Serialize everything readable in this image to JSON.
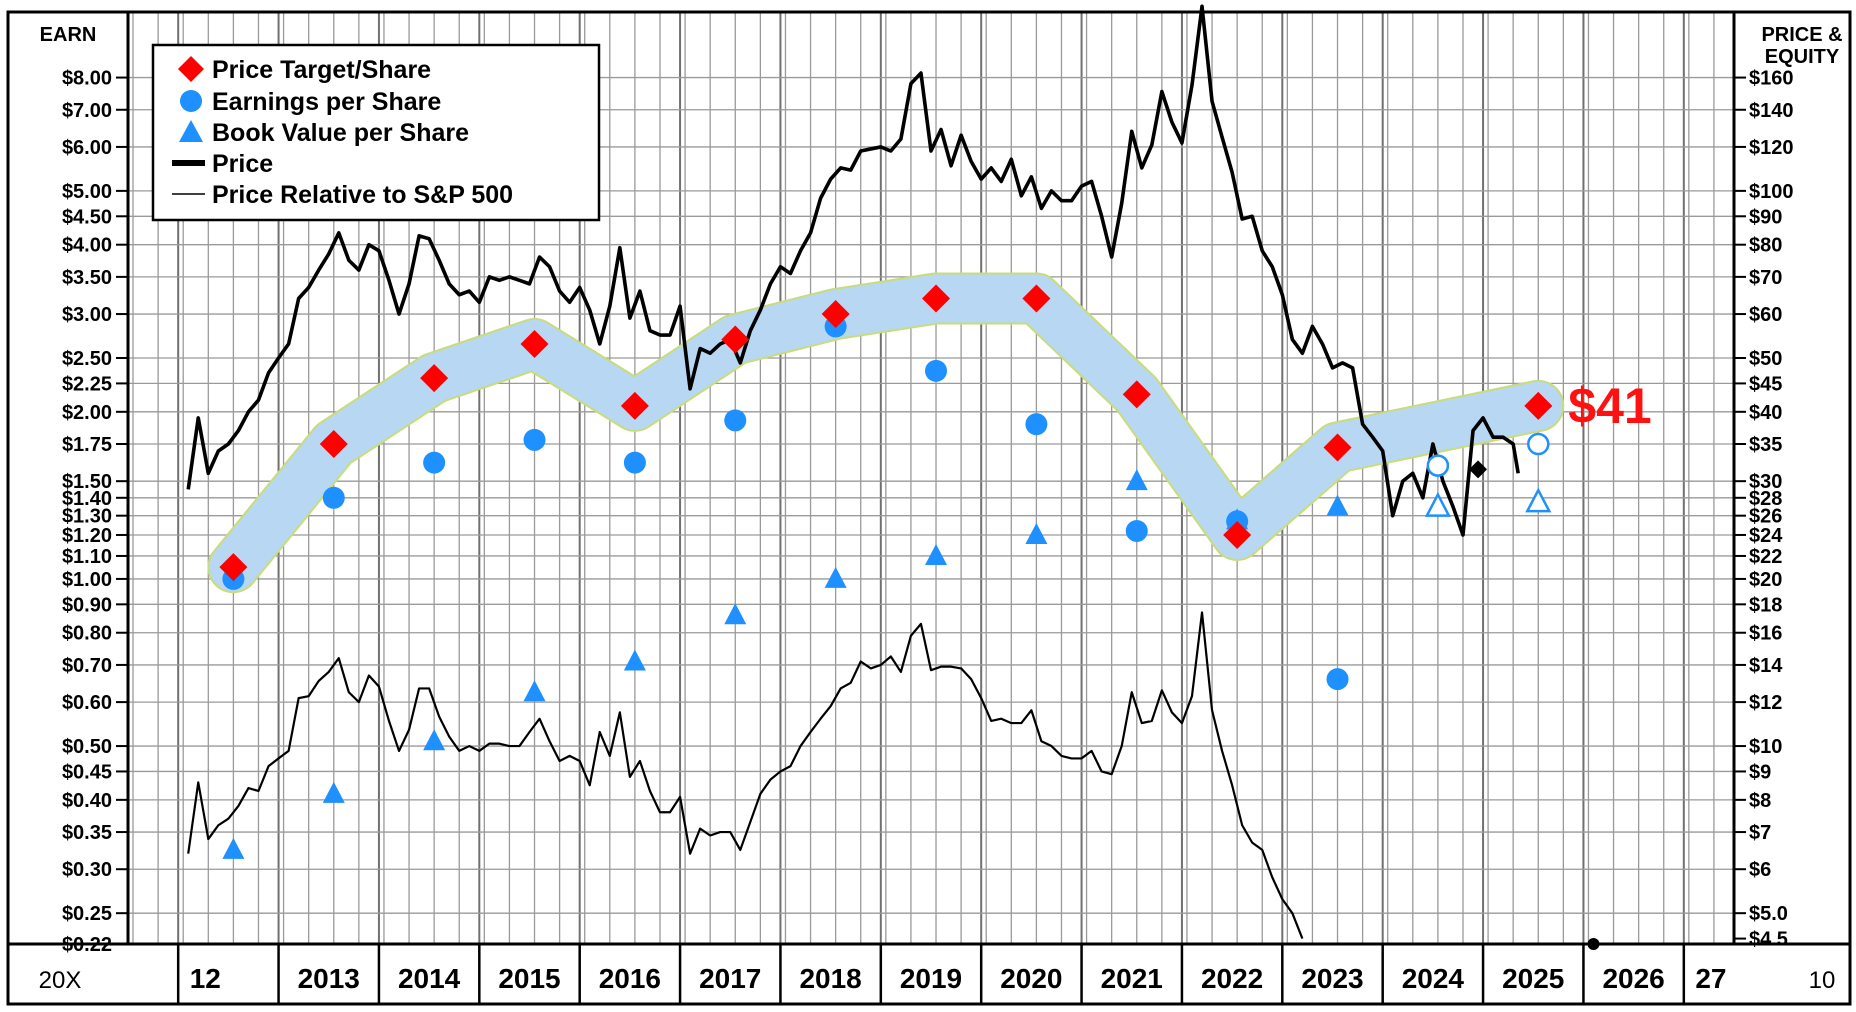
{
  "chart_data": {
    "type": "line",
    "scale": "log",
    "left_axis_label": "EARN",
    "right_axis_label_line1": "PRICE &",
    "right_axis_label_line2": "EQUITY",
    "corner_left": "20X",
    "corner_right": "10",
    "year_labels": [
      "12",
      "2013",
      "2014",
      "2015",
      "2016",
      "2017",
      "2018",
      "2019",
      "2020",
      "2021",
      "2022",
      "2023",
      "2024",
      "2025",
      "2026",
      "27"
    ],
    "earn_ticks": [
      {
        "v": 8.0,
        "t": "$8.00"
      },
      {
        "v": 7.0,
        "t": "$7.00"
      },
      {
        "v": 6.0,
        "t": "$6.00"
      },
      {
        "v": 5.0,
        "t": "$5.00"
      },
      {
        "v": 4.5,
        "t": "$4.50"
      },
      {
        "v": 4.0,
        "t": "$4.00"
      },
      {
        "v": 3.5,
        "t": "$3.50"
      },
      {
        "v": 3.0,
        "t": "$3.00"
      },
      {
        "v": 2.5,
        "t": "$2.50"
      },
      {
        "v": 2.25,
        "t": "$2.25"
      },
      {
        "v": 2.0,
        "t": "$2.00"
      },
      {
        "v": 1.75,
        "t": "$1.75"
      },
      {
        "v": 1.5,
        "t": "$1.50"
      },
      {
        "v": 1.4,
        "t": "$1.40"
      },
      {
        "v": 1.3,
        "t": "$1.30"
      },
      {
        "v": 1.2,
        "t": "$1.20"
      },
      {
        "v": 1.1,
        "t": "$1.10"
      },
      {
        "v": 1.0,
        "t": "$1.00"
      },
      {
        "v": 0.9,
        "t": "$0.90"
      },
      {
        "v": 0.8,
        "t": "$0.80"
      },
      {
        "v": 0.7,
        "t": "$0.70"
      },
      {
        "v": 0.6,
        "t": "$0.60"
      },
      {
        "v": 0.5,
        "t": "$0.50"
      },
      {
        "v": 0.45,
        "t": "$0.45"
      },
      {
        "v": 0.4,
        "t": "$0.40"
      },
      {
        "v": 0.35,
        "t": "$0.35"
      },
      {
        "v": 0.3,
        "t": "$0.30"
      },
      {
        "v": 0.25,
        "t": "$0.25"
      },
      {
        "v": 0.22,
        "t": "$0.22"
      }
    ],
    "price_ticks": [
      {
        "v": 160,
        "t": "$160"
      },
      {
        "v": 140,
        "t": "$140"
      },
      {
        "v": 120,
        "t": "$120"
      },
      {
        "v": 100,
        "t": "$100"
      },
      {
        "v": 90,
        "t": "$90"
      },
      {
        "v": 80,
        "t": "$80"
      },
      {
        "v": 70,
        "t": "$70"
      },
      {
        "v": 60,
        "t": "$60"
      },
      {
        "v": 50,
        "t": "$50"
      },
      {
        "v": 45,
        "t": "$45"
      },
      {
        "v": 40,
        "t": "$40"
      },
      {
        "v": 35,
        "t": "$35"
      },
      {
        "v": 30,
        "t": "$30"
      },
      {
        "v": 28,
        "t": "$28"
      },
      {
        "v": 26,
        "t": "$26"
      },
      {
        "v": 24,
        "t": "$24"
      },
      {
        "v": 22,
        "t": "$22"
      },
      {
        "v": 20,
        "t": "$20"
      },
      {
        "v": 18,
        "t": "$18"
      },
      {
        "v": 16,
        "t": "$16"
      },
      {
        "v": 14,
        "t": "$14"
      },
      {
        "v": 12,
        "t": "$12"
      },
      {
        "v": 10,
        "t": "$10"
      },
      {
        "v": 9,
        "t": "$9"
      },
      {
        "v": 8,
        "t": "$8"
      },
      {
        "v": 7,
        "t": "$7"
      },
      {
        "v": 6,
        "t": "$6"
      },
      {
        "v": 5,
        "t": "$5.0"
      },
      {
        "v": 4.5,
        "t": "$4.5"
      }
    ],
    "legend": [
      {
        "name": "Price Target/Share",
        "marker": "diamond",
        "color": "#ff0000"
      },
      {
        "name": "Earnings per Share",
        "marker": "circle",
        "color": "#1e90ff"
      },
      {
        "name": "Book Value per Share",
        "marker": "triangle",
        "color": "#1e90ff"
      },
      {
        "name": "Price",
        "marker": "thick-line",
        "color": "#000000"
      },
      {
        "name": "Price Relative to S&P 500",
        "marker": "thin-line",
        "color": "#000000"
      }
    ],
    "price_target_label": "$41",
    "price_target": [
      {
        "x": 2012.5,
        "v": 21
      },
      {
        "x": 2013.5,
        "v": 35
      },
      {
        "x": 2014.5,
        "v": 46
      },
      {
        "x": 2015.5,
        "v": 53
      },
      {
        "x": 2016.5,
        "v": 41
      },
      {
        "x": 2017.5,
        "v": 54
      },
      {
        "x": 2018.5,
        "v": 60
      },
      {
        "x": 2019.5,
        "v": 64
      },
      {
        "x": 2020.5,
        "v": 64
      },
      {
        "x": 2021.5,
        "v": 43
      },
      {
        "x": 2022.5,
        "v": 24
      },
      {
        "x": 2023.5,
        "v": 34.5
      },
      {
        "x": 2025.5,
        "v": 41
      }
    ],
    "eps": [
      {
        "x": 2012.5,
        "v": 1.0,
        "est": false
      },
      {
        "x": 2013.5,
        "v": 1.4,
        "est": false
      },
      {
        "x": 2014.5,
        "v": 1.62,
        "est": false
      },
      {
        "x": 2015.5,
        "v": 1.78,
        "est": false
      },
      {
        "x": 2016.5,
        "v": 1.62,
        "est": false
      },
      {
        "x": 2017.5,
        "v": 1.93,
        "est": false
      },
      {
        "x": 2018.5,
        "v": 2.85,
        "est": false
      },
      {
        "x": 2019.5,
        "v": 2.37,
        "est": false
      },
      {
        "x": 2020.5,
        "v": 1.9,
        "est": false
      },
      {
        "x": 2021.5,
        "v": 1.22,
        "est": false
      },
      {
        "x": 2022.5,
        "v": 1.27,
        "est": false
      },
      {
        "x": 2023.5,
        "v": 0.66,
        "est": false
      },
      {
        "x": 2024.5,
        "v": 1.6,
        "est": true
      },
      {
        "x": 2025.5,
        "v": 1.75,
        "est": true
      }
    ],
    "book_value": [
      {
        "x": 2012.5,
        "v": 6.5,
        "est": false
      },
      {
        "x": 2013.5,
        "v": 8.2,
        "est": false
      },
      {
        "x": 2014.5,
        "v": 10.2,
        "est": false
      },
      {
        "x": 2015.5,
        "v": 12.5,
        "est": false
      },
      {
        "x": 2016.5,
        "v": 14.2,
        "est": false
      },
      {
        "x": 2017.5,
        "v": 17.2,
        "est": false
      },
      {
        "x": 2018.5,
        "v": 20.0,
        "est": false
      },
      {
        "x": 2019.5,
        "v": 22.0,
        "est": false
      },
      {
        "x": 2020.5,
        "v": 24.0,
        "est": false
      },
      {
        "x": 2021.5,
        "v": 30.0,
        "est": false
      },
      {
        "x": 2022.5,
        "v": 25.5,
        "est": false
      },
      {
        "x": 2023.5,
        "v": 27.0,
        "est": false
      },
      {
        "x": 2024.5,
        "v": 27.0,
        "est": true
      },
      {
        "x": 2025.5,
        "v": 27.5,
        "est": true
      }
    ],
    "price": [
      [
        2012.05,
        29
      ],
      [
        2012.15,
        39
      ],
      [
        2012.25,
        31
      ],
      [
        2012.35,
        34
      ],
      [
        2012.45,
        35
      ],
      [
        2012.55,
        37
      ],
      [
        2012.65,
        40
      ],
      [
        2012.75,
        42
      ],
      [
        2012.85,
        47
      ],
      [
        2012.95,
        50
      ],
      [
        2013.05,
        53
      ],
      [
        2013.15,
        64
      ],
      [
        2013.25,
        67
      ],
      [
        2013.35,
        72
      ],
      [
        2013.45,
        77
      ],
      [
        2013.55,
        84
      ],
      [
        2013.65,
        75
      ],
      [
        2013.75,
        72
      ],
      [
        2013.85,
        80
      ],
      [
        2013.95,
        78
      ],
      [
        2014.05,
        69
      ],
      [
        2014.15,
        60
      ],
      [
        2014.25,
        68
      ],
      [
        2014.35,
        83
      ],
      [
        2014.45,
        82
      ],
      [
        2014.55,
        75
      ],
      [
        2014.65,
        68
      ],
      [
        2014.75,
        65
      ],
      [
        2014.85,
        66
      ],
      [
        2014.95,
        63
      ],
      [
        2015.05,
        70
      ],
      [
        2015.15,
        69
      ],
      [
        2015.25,
        70
      ],
      [
        2015.35,
        69
      ],
      [
        2015.45,
        68
      ],
      [
        2015.55,
        76
      ],
      [
        2015.65,
        73
      ],
      [
        2015.75,
        66
      ],
      [
        2015.85,
        63
      ],
      [
        2015.95,
        67
      ],
      [
        2016.05,
        61
      ],
      [
        2016.15,
        53
      ],
      [
        2016.25,
        62
      ],
      [
        2016.35,
        79
      ],
      [
        2016.45,
        59
      ],
      [
        2016.55,
        66
      ],
      [
        2016.65,
        56
      ],
      [
        2016.75,
        55
      ],
      [
        2016.85,
        55
      ],
      [
        2016.95,
        62
      ],
      [
        2017.05,
        44
      ],
      [
        2017.15,
        52
      ],
      [
        2017.25,
        51
      ],
      [
        2017.35,
        53
      ],
      [
        2017.45,
        54
      ],
      [
        2017.55,
        49
      ],
      [
        2017.65,
        56
      ],
      [
        2017.75,
        61
      ],
      [
        2017.85,
        68
      ],
      [
        2017.95,
        73
      ],
      [
        2018.05,
        71
      ],
      [
        2018.15,
        78
      ],
      [
        2018.25,
        84
      ],
      [
        2018.35,
        97
      ],
      [
        2018.45,
        105
      ],
      [
        2018.55,
        110
      ],
      [
        2018.65,
        109
      ],
      [
        2018.75,
        118
      ],
      [
        2018.85,
        119
      ],
      [
        2018.95,
        120
      ],
      [
        2019.05,
        118
      ],
      [
        2019.15,
        124
      ],
      [
        2019.25,
        156
      ],
      [
        2019.35,
        163
      ],
      [
        2019.45,
        118
      ],
      [
        2019.55,
        129
      ],
      [
        2019.65,
        111
      ],
      [
        2019.75,
        126
      ],
      [
        2019.85,
        113
      ],
      [
        2019.95,
        105
      ],
      [
        2020.05,
        110
      ],
      [
        2020.15,
        104
      ],
      [
        2020.25,
        114
      ],
      [
        2020.35,
        98
      ],
      [
        2020.45,
        106
      ],
      [
        2020.55,
        93
      ],
      [
        2020.65,
        100
      ],
      [
        2020.75,
        96
      ],
      [
        2020.85,
        96
      ],
      [
        2020.95,
        102
      ],
      [
        2021.05,
        104
      ],
      [
        2021.15,
        90
      ],
      [
        2021.25,
        76
      ],
      [
        2021.35,
        95
      ],
      [
        2021.45,
        128
      ],
      [
        2021.55,
        110
      ],
      [
        2021.65,
        121
      ],
      [
        2021.75,
        151
      ],
      [
        2021.85,
        133
      ],
      [
        2021.95,
        122
      ],
      [
        2022.05,
        155
      ],
      [
        2022.15,
        215
      ],
      [
        2022.25,
        145
      ],
      [
        2022.35,
        125
      ],
      [
        2022.45,
        108
      ],
      [
        2022.55,
        89
      ],
      [
        2022.65,
        90
      ],
      [
        2022.75,
        78
      ],
      [
        2022.85,
        73
      ],
      [
        2022.95,
        65
      ],
      [
        2023.05,
        54
      ],
      [
        2023.15,
        51
      ],
      [
        2023.25,
        57
      ],
      [
        2023.35,
        53
      ],
      [
        2023.45,
        48
      ],
      [
        2023.55,
        49
      ],
      [
        2023.65,
        48
      ],
      [
        2023.75,
        38
      ],
      [
        2023.85,
        36
      ],
      [
        2023.95,
        34
      ],
      [
        2024.05,
        26
      ],
      [
        2024.15,
        30
      ],
      [
        2024.25,
        31
      ],
      [
        2024.35,
        28
      ],
      [
        2024.45,
        35
      ],
      [
        2024.55,
        30
      ],
      [
        2024.65,
        27
      ],
      [
        2024.75,
        24
      ],
      [
        2024.85,
        37
      ],
      [
        2024.95,
        39
      ],
      [
        2025.05,
        36
      ],
      [
        2025.15,
        36
      ],
      [
        2025.25,
        35
      ],
      [
        2025.3,
        31
      ]
    ],
    "price_relative": [
      [
        2012.05,
        6.4
      ],
      [
        2012.15,
        8.6
      ],
      [
        2012.25,
        6.8
      ],
      [
        2012.35,
        7.2
      ],
      [
        2012.45,
        7.4
      ],
      [
        2012.55,
        7.8
      ],
      [
        2012.65,
        8.4
      ],
      [
        2012.75,
        8.3
      ],
      [
        2012.85,
        9.2
      ],
      [
        2012.95,
        9.5
      ],
      [
        2013.05,
        9.8
      ],
      [
        2013.15,
        12.2
      ],
      [
        2013.25,
        12.3
      ],
      [
        2013.35,
        13.1
      ],
      [
        2013.45,
        13.6
      ],
      [
        2013.55,
        14.4
      ],
      [
        2013.65,
        12.5
      ],
      [
        2013.75,
        12.0
      ],
      [
        2013.85,
        13.4
      ],
      [
        2013.95,
        12.8
      ],
      [
        2014.05,
        11.1
      ],
      [
        2014.15,
        9.8
      ],
      [
        2014.25,
        10.7
      ],
      [
        2014.35,
        12.7
      ],
      [
        2014.45,
        12.7
      ],
      [
        2014.55,
        11.3
      ],
      [
        2014.65,
        10.4
      ],
      [
        2014.75,
        9.8
      ],
      [
        2014.85,
        10.0
      ],
      [
        2014.95,
        9.8
      ],
      [
        2015.05,
        10.1
      ],
      [
        2015.15,
        10.1
      ],
      [
        2015.25,
        10.0
      ],
      [
        2015.35,
        10.0
      ],
      [
        2015.45,
        10.6
      ],
      [
        2015.55,
        11.2
      ],
      [
        2015.65,
        10.2
      ],
      [
        2015.75,
        9.4
      ],
      [
        2015.85,
        9.6
      ],
      [
        2015.95,
        9.4
      ],
      [
        2016.05,
        8.5
      ],
      [
        2016.15,
        10.6
      ],
      [
        2016.25,
        9.6
      ],
      [
        2016.35,
        11.5
      ],
      [
        2016.45,
        8.8
      ],
      [
        2016.55,
        9.4
      ],
      [
        2016.65,
        8.3
      ],
      [
        2016.75,
        7.6
      ],
      [
        2016.85,
        7.6
      ],
      [
        2016.95,
        8.1
      ],
      [
        2017.05,
        6.4
      ],
      [
        2017.15,
        7.1
      ],
      [
        2017.25,
        6.9
      ],
      [
        2017.35,
        7.0
      ],
      [
        2017.45,
        7.0
      ],
      [
        2017.55,
        6.5
      ],
      [
        2017.65,
        7.3
      ],
      [
        2017.75,
        8.2
      ],
      [
        2017.85,
        8.7
      ],
      [
        2017.95,
        9.0
      ],
      [
        2018.05,
        9.2
      ],
      [
        2018.15,
        10.0
      ],
      [
        2018.25,
        10.6
      ],
      [
        2018.35,
        11.2
      ],
      [
        2018.45,
        11.8
      ],
      [
        2018.55,
        12.7
      ],
      [
        2018.65,
        13.0
      ],
      [
        2018.75,
        14.2
      ],
      [
        2018.85,
        13.8
      ],
      [
        2018.95,
        14.0
      ],
      [
        2019.05,
        14.5
      ],
      [
        2019.15,
        13.6
      ],
      [
        2019.25,
        15.8
      ],
      [
        2019.35,
        16.6
      ],
      [
        2019.45,
        13.7
      ],
      [
        2019.55,
        13.9
      ],
      [
        2019.65,
        13.9
      ],
      [
        2019.75,
        13.8
      ],
      [
        2019.85,
        13.2
      ],
      [
        2019.95,
        12.2
      ],
      [
        2020.05,
        11.1
      ],
      [
        2020.15,
        11.2
      ],
      [
        2020.25,
        11.0
      ],
      [
        2020.35,
        11.0
      ],
      [
        2020.45,
        11.6
      ],
      [
        2020.55,
        10.2
      ],
      [
        2020.65,
        10.0
      ],
      [
        2020.75,
        9.6
      ],
      [
        2020.85,
        9.5
      ],
      [
        2020.95,
        9.5
      ],
      [
        2021.05,
        9.8
      ],
      [
        2021.15,
        9.0
      ],
      [
        2021.25,
        8.9
      ],
      [
        2021.35,
        10.0
      ],
      [
        2021.45,
        12.5
      ],
      [
        2021.55,
        11.0
      ],
      [
        2021.65,
        11.1
      ],
      [
        2021.75,
        12.6
      ],
      [
        2021.85,
        11.5
      ],
      [
        2021.95,
        11.0
      ],
      [
        2022.05,
        12.3
      ],
      [
        2022.15,
        17.4
      ],
      [
        2022.25,
        11.6
      ],
      [
        2022.35,
        9.8
      ],
      [
        2022.45,
        8.5
      ],
      [
        2022.55,
        7.2
      ],
      [
        2022.65,
        6.7
      ],
      [
        2022.75,
        6.5
      ],
      [
        2022.85,
        5.8
      ],
      [
        2022.95,
        5.3
      ],
      [
        2023.05,
        5.0
      ],
      [
        2023.15,
        4.5
      ]
    ],
    "markers": [
      {
        "x": 2024.9,
        "v": 31.5,
        "shape": "diamond",
        "color": "#000000"
      },
      {
        "x": 2026.05,
        "v": 4.4,
        "shape": "dot",
        "color": "#000000"
      }
    ],
    "x_range": [
      2011.45,
      2027.45
    ],
    "earn_range": [
      0.22,
      10.5
    ],
    "price_range": [
      4.4,
      210
    ]
  }
}
